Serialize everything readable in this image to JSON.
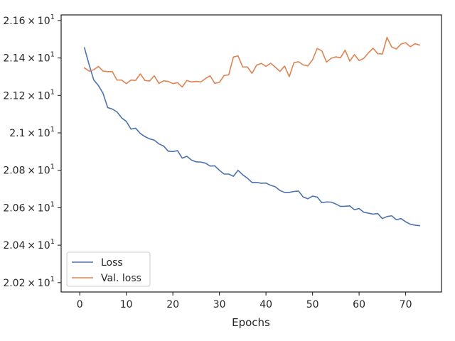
{
  "chart_data": {
    "type": "line",
    "title": "",
    "xlabel": "Epochs",
    "ylabel": "",
    "xlim": [
      -4.0,
      77.7
    ],
    "ylim": [
      20.15,
      21.63
    ],
    "x_ticks": [
      0,
      10,
      20,
      30,
      40,
      50,
      60,
      70
    ],
    "x_tick_labels": [
      "0",
      "10",
      "20",
      "30",
      "40",
      "50",
      "60",
      "70"
    ],
    "y_ticks": [
      20.2,
      20.4,
      20.6,
      20.8,
      21.0,
      21.2,
      21.4,
      21.6
    ],
    "y_tick_labels": [
      {
        "mantissa": "2.02",
        "base": "10",
        "exp": "1"
      },
      {
        "mantissa": "2.04",
        "base": "10",
        "exp": "1"
      },
      {
        "mantissa": "2.06",
        "base": "10",
        "exp": "1"
      },
      {
        "mantissa": "2.08",
        "base": "10",
        "exp": "1"
      },
      {
        "mantissa": "2.1",
        "base": "10",
        "exp": "1"
      },
      {
        "mantissa": "2.12",
        "base": "10",
        "exp": "1"
      },
      {
        "mantissa": "2.14",
        "base": "10",
        "exp": "1"
      },
      {
        "mantissa": "2.16",
        "base": "10",
        "exp": "1"
      }
    ],
    "times_symbol": "×",
    "grid": false,
    "legend_position": "lower-left",
    "series": [
      {
        "name": "Loss",
        "color": "#4c72b0",
        "x": [
          1,
          2,
          3,
          4,
          5,
          6,
          7,
          8,
          9,
          10,
          11,
          12,
          13,
          14,
          15,
          16,
          17,
          18,
          19,
          20,
          21,
          22,
          23,
          24,
          25,
          26,
          27,
          28,
          29,
          30,
          31,
          32,
          33,
          34,
          35,
          36,
          37,
          38,
          39,
          40,
          41,
          42,
          43,
          44,
          45,
          46,
          47,
          48,
          49,
          50,
          51,
          52,
          53,
          54,
          55,
          56,
          57,
          58,
          59,
          60,
          61,
          62,
          63,
          64,
          65,
          66,
          67,
          68,
          69,
          70,
          71,
          72,
          73
        ],
        "values": [
          21.455,
          21.365,
          21.283,
          21.253,
          21.211,
          21.135,
          21.127,
          21.112,
          21.08,
          21.061,
          21.02,
          21.025,
          20.997,
          20.98,
          20.968,
          20.961,
          20.941,
          20.93,
          20.902,
          20.9,
          20.905,
          20.865,
          20.875,
          20.855,
          20.845,
          20.844,
          20.838,
          20.823,
          20.824,
          20.8,
          20.78,
          20.78,
          20.768,
          20.8,
          20.776,
          20.758,
          20.735,
          20.735,
          20.731,
          20.732,
          20.72,
          20.712,
          20.692,
          20.682,
          20.682,
          20.687,
          20.689,
          20.657,
          20.648,
          20.662,
          20.657,
          20.627,
          20.631,
          20.63,
          20.62,
          20.607,
          20.608,
          20.61,
          20.589,
          20.596,
          20.576,
          20.571,
          20.566,
          20.569,
          20.542,
          20.553,
          20.557,
          20.536,
          20.542,
          20.525,
          20.512,
          20.507,
          20.504
        ]
      },
      {
        "name": "Val. loss",
        "color": "#dd8452",
        "x": [
          1,
          2,
          3,
          4,
          5,
          6,
          7,
          8,
          9,
          10,
          11,
          12,
          13,
          14,
          15,
          16,
          17,
          18,
          19,
          20,
          21,
          22,
          23,
          24,
          25,
          26,
          27,
          28,
          29,
          30,
          31,
          32,
          33,
          34,
          35,
          36,
          37,
          38,
          39,
          40,
          41,
          42,
          43,
          44,
          45,
          46,
          47,
          48,
          49,
          50,
          51,
          52,
          53,
          54,
          55,
          56,
          57,
          58,
          59,
          60,
          61,
          62,
          63,
          64,
          65,
          66,
          67,
          68,
          69,
          70,
          71,
          72,
          73
        ],
        "values": [
          21.347,
          21.33,
          21.337,
          21.355,
          21.33,
          21.327,
          21.327,
          21.282,
          21.282,
          21.263,
          21.282,
          21.28,
          21.315,
          21.28,
          21.277,
          21.305,
          21.264,
          21.278,
          21.275,
          21.263,
          21.268,
          21.245,
          21.28,
          21.272,
          21.275,
          21.272,
          21.29,
          21.305,
          21.264,
          21.27,
          21.306,
          21.31,
          21.405,
          21.411,
          21.352,
          21.352,
          21.318,
          21.362,
          21.371,
          21.355,
          21.372,
          21.351,
          21.328,
          21.357,
          21.3,
          21.375,
          21.38,
          21.363,
          21.358,
          21.39,
          21.451,
          21.438,
          21.378,
          21.398,
          21.406,
          21.401,
          21.442,
          21.383,
          21.418,
          21.386,
          21.398,
          21.427,
          21.452,
          21.423,
          21.421,
          21.51,
          21.459,
          21.448,
          21.474,
          21.482,
          21.46,
          21.476,
          21.469
        ]
      }
    ]
  }
}
